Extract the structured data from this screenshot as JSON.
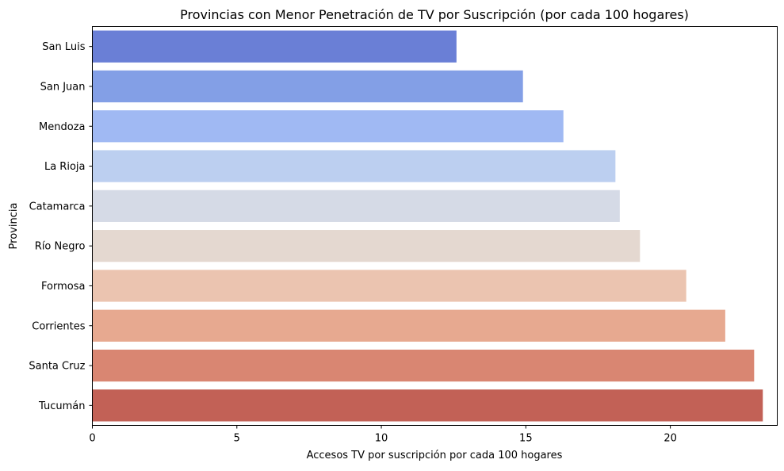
{
  "chart_data": {
    "type": "bar",
    "orientation": "horizontal",
    "title": "Provincias con Menor Penetración de TV por Suscripción (por cada 100 hogares)",
    "xlabel": "Accesos TV por suscripción por cada 100 hogares",
    "ylabel": "Provincia",
    "xlim": [
      0,
      23.7
    ],
    "xticks": [
      0,
      5,
      10,
      15,
      20
    ],
    "grid": false,
    "categories": [
      "San Luis",
      "San Juan",
      "Mendoza",
      "La Rioja",
      "Catamarca",
      "Río Negro",
      "Formosa",
      "Corrientes",
      "Santa Cruz",
      "Tucumán"
    ],
    "values": [
      12.6,
      14.9,
      16.3,
      18.1,
      18.25,
      18.95,
      20.55,
      21.9,
      22.9,
      23.2
    ],
    "colors": [
      "#6a7fd6",
      "#839fe6",
      "#a0b9f3",
      "#bccff0",
      "#d5dae6",
      "#e4d8d0",
      "#ebc4b0",
      "#e7a990",
      "#d98672",
      "#c26156"
    ]
  }
}
